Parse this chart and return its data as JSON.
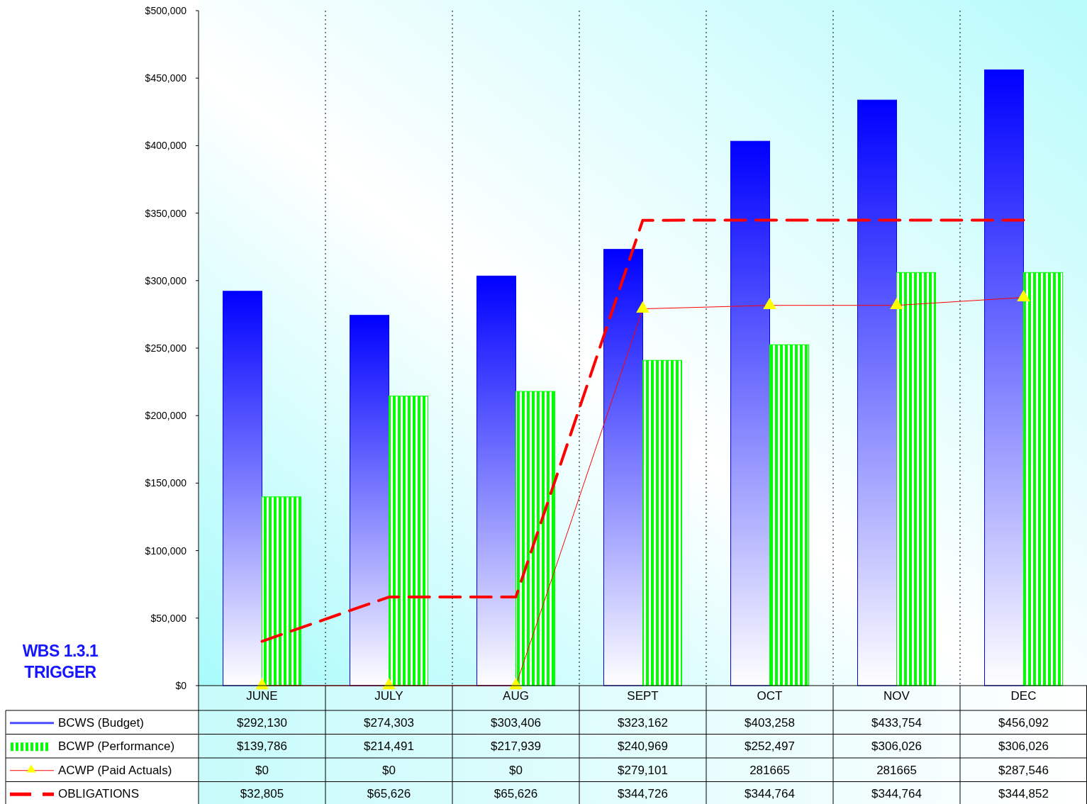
{
  "chart_data": {
    "type": "bar",
    "title": "WBS 1.3.1 TRIGGER",
    "categories": [
      "JUNE",
      "JULY",
      "AUG",
      "SEPT",
      "OCT",
      "NOV",
      "DEC"
    ],
    "series": [
      {
        "name": "BCWS (Budget)",
        "type": "bar",
        "color": "#0000ff",
        "values": [
          292130,
          274303,
          303406,
          323162,
          403258,
          433754,
          456092
        ],
        "value_labels": [
          "$292,130",
          "$274,303",
          "$303,406",
          "$323,162",
          "$403,258",
          "$433,754",
          "$456,092"
        ]
      },
      {
        "name": "BCWP (Performance)",
        "type": "bar",
        "color": "#00ff00",
        "values": [
          139786,
          214491,
          217939,
          240969,
          252497,
          306026,
          306026
        ],
        "value_labels": [
          "$139,786",
          "$214,491",
          "$217,939",
          "$240,969",
          "$252,497",
          "$306,026",
          "$306,026"
        ]
      },
      {
        "name": "ACWP (Paid Actuals)",
        "type": "line",
        "color": "#ff0000",
        "marker": "triangle",
        "line_style": "solid",
        "values": [
          0,
          0,
          0,
          279101,
          281665,
          281665,
          287546
        ],
        "value_labels": [
          "$0",
          "$0",
          "$0",
          "$279,101",
          "281665",
          "281665",
          "$287,546"
        ]
      },
      {
        "name": "OBLIGATIONS",
        "type": "line",
        "color": "#ff0000",
        "marker": "none",
        "line_style": "dashed",
        "values": [
          32805,
          65626,
          65626,
          344726,
          344764,
          344764,
          344852
        ],
        "value_labels": [
          "$32,805",
          "$65,626",
          "$65,626",
          "$344,726",
          "$344,764",
          "$344,764",
          "$344,852"
        ]
      }
    ],
    "ylim": [
      0,
      500000
    ],
    "yticks": [
      {
        "value": 0,
        "label": "$0"
      },
      {
        "value": 50000,
        "label": "$50,000"
      },
      {
        "value": 100000,
        "label": "$100,000"
      },
      {
        "value": 150000,
        "label": "$150,000"
      },
      {
        "value": 200000,
        "label": "$200,000"
      },
      {
        "value": 250000,
        "label": "$250,000"
      },
      {
        "value": 300000,
        "label": "$300,000"
      },
      {
        "value": 350000,
        "label": "$350,000"
      },
      {
        "value": 400000,
        "label": "$400,000"
      },
      {
        "value": 450000,
        "label": "$450,000"
      },
      {
        "value": 500000,
        "label": "$500,000"
      }
    ],
    "grid": "x",
    "legend": "bottom",
    "data_labels": true
  }
}
